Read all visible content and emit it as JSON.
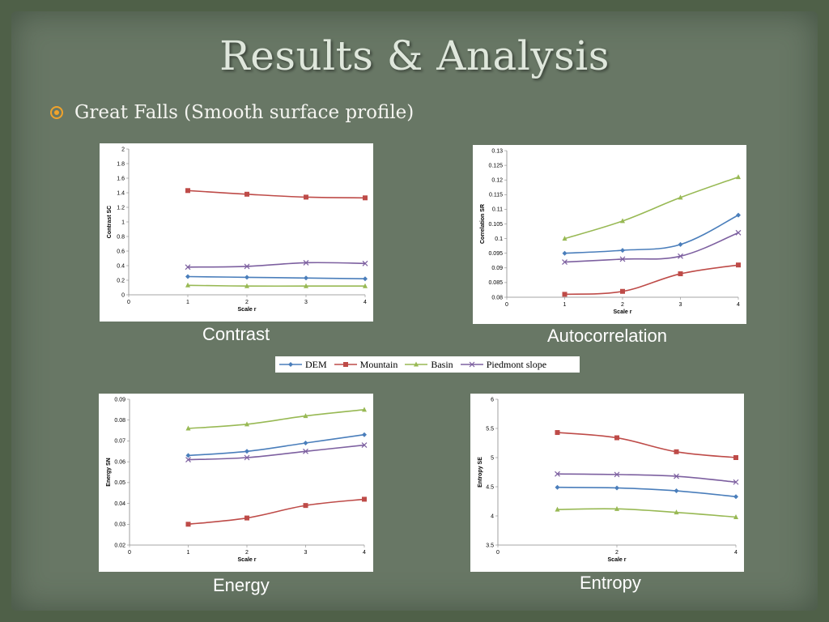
{
  "slide": {
    "title": "Results & Analysis",
    "bullet": "Great Falls (Smooth surface profile)"
  },
  "colors": {
    "DEM": "#4a7ebb",
    "Mountain": "#be4b48",
    "Basin": "#98b954",
    "Piedmont slope": "#7d60a0"
  },
  "legend": {
    "entries": [
      {
        "label": "DEM",
        "marker": "diamond",
        "color": "#4a7ebb"
      },
      {
        "label": "Mountain",
        "marker": "square",
        "color": "#be4b48"
      },
      {
        "label": "Basin",
        "marker": "triangle",
        "color": "#98b954"
      },
      {
        "label": "Piedmont slope",
        "marker": "x",
        "color": "#7d60a0"
      }
    ]
  },
  "chart_data": [
    {
      "type": "line",
      "caption": "Contrast",
      "xlabel": "Scale r",
      "ylabel": "Contrast SC",
      "xlim": [
        0,
        4
      ],
      "ylim": [
        0,
        2
      ],
      "xticks": [
        0,
        1,
        2,
        3,
        4
      ],
      "yticks": [
        0,
        0.2,
        0.4,
        0.6,
        0.8,
        1,
        1.2,
        1.4,
        1.6,
        1.8,
        2
      ],
      "ytick_labels": [
        "0",
        "0.2",
        "0.4",
        "0.6",
        "0.8",
        "1",
        "1.2",
        "1.4",
        "1.6",
        "1.8",
        "2"
      ],
      "x": [
        1,
        2,
        3,
        4
      ],
      "series": [
        {
          "name": "DEM",
          "values": [
            0.25,
            0.24,
            0.23,
            0.22
          ]
        },
        {
          "name": "Mountain",
          "values": [
            1.43,
            1.38,
            1.34,
            1.33
          ]
        },
        {
          "name": "Basin",
          "values": [
            0.13,
            0.12,
            0.12,
            0.12
          ]
        },
        {
          "name": "Piedmont slope",
          "values": [
            0.38,
            0.39,
            0.44,
            0.43
          ]
        }
      ]
    },
    {
      "type": "line",
      "caption": "Autocorrelation",
      "xlabel": "Scale r",
      "ylabel": "Correlation SR",
      "xlim": [
        0,
        4
      ],
      "ylim": [
        0.08,
        0.13
      ],
      "xticks": [
        0,
        1,
        2,
        3,
        4
      ],
      "yticks": [
        0.08,
        0.085,
        0.09,
        0.095,
        0.1,
        0.105,
        0.11,
        0.115,
        0.12,
        0.125,
        0.13
      ],
      "ytick_labels": [
        "0.08",
        "0.085",
        "0.09",
        "0.095",
        "0.1",
        "0.105",
        "0.11",
        "0.115",
        "0.12",
        "0.125",
        "0.13"
      ],
      "x": [
        1,
        2,
        3,
        4
      ],
      "series": [
        {
          "name": "DEM",
          "values": [
            0.095,
            0.096,
            0.098,
            0.108
          ]
        },
        {
          "name": "Mountain",
          "values": [
            0.081,
            0.082,
            0.088,
            0.091
          ]
        },
        {
          "name": "Basin",
          "values": [
            0.1,
            0.106,
            0.114,
            0.121
          ]
        },
        {
          "name": "Piedmont slope",
          "values": [
            0.092,
            0.093,
            0.094,
            0.102
          ]
        }
      ]
    },
    {
      "type": "line",
      "caption": "Energy",
      "xlabel": "Scale r",
      "ylabel": "Energy SN",
      "xlim": [
        0,
        4
      ],
      "ylim": [
        0.02,
        0.09
      ],
      "xticks": [
        0,
        1,
        2,
        3,
        4
      ],
      "yticks": [
        0.02,
        0.03,
        0.04,
        0.05,
        0.06,
        0.07,
        0.08,
        0.09
      ],
      "ytick_labels": [
        "0.02",
        "0.03",
        "0.04",
        "0.05",
        "0.06",
        "0.07",
        "0.08",
        "0.09"
      ],
      "x": [
        1,
        2,
        3,
        4
      ],
      "series": [
        {
          "name": "DEM",
          "values": [
            0.063,
            0.065,
            0.069,
            0.073
          ]
        },
        {
          "name": "Mountain",
          "values": [
            0.03,
            0.033,
            0.039,
            0.042
          ]
        },
        {
          "name": "Basin",
          "values": [
            0.076,
            0.078,
            0.082,
            0.085
          ]
        },
        {
          "name": "Piedmont slope",
          "values": [
            0.061,
            0.062,
            0.065,
            0.068
          ]
        }
      ]
    },
    {
      "type": "line",
      "caption": "Entropy",
      "xlabel": "Scale r",
      "ylabel": "Entropy SE",
      "xlim": [
        0,
        4
      ],
      "ylim": [
        3.5,
        6
      ],
      "xticks": [
        0,
        2,
        4
      ],
      "yticks": [
        3.5,
        4,
        4.5,
        5,
        5.5,
        6
      ],
      "ytick_labels": [
        "3.5",
        "4",
        "4.5",
        "5",
        "5.5",
        "6"
      ],
      "x": [
        1,
        2,
        3,
        4
      ],
      "series": [
        {
          "name": "DEM",
          "values": [
            4.49,
            4.48,
            4.43,
            4.33
          ]
        },
        {
          "name": "Mountain",
          "values": [
            5.43,
            5.34,
            5.1,
            5.0
          ]
        },
        {
          "name": "Basin",
          "values": [
            4.11,
            4.12,
            4.06,
            3.98
          ]
        },
        {
          "name": "Piedmont slope",
          "values": [
            4.72,
            4.71,
            4.68,
            4.58
          ]
        }
      ]
    }
  ]
}
